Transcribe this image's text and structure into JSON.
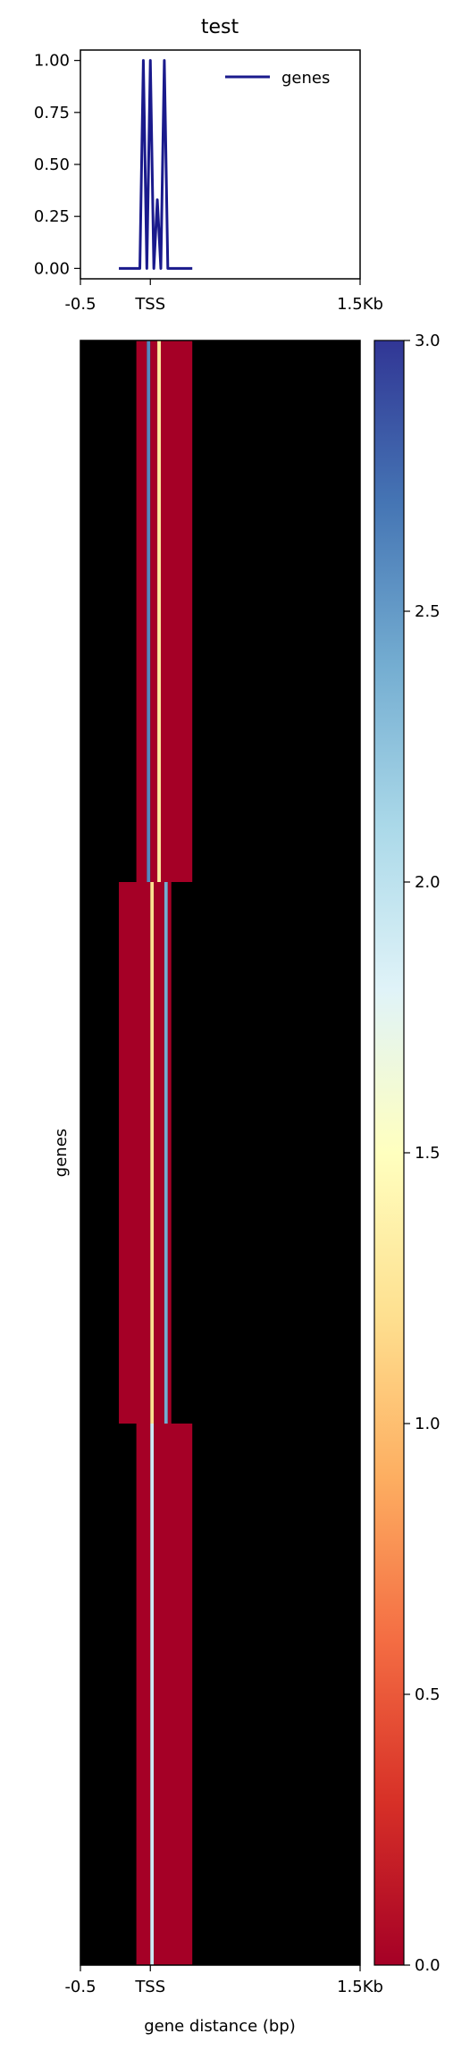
{
  "chart_data": [
    {
      "type": "line",
      "title": "test",
      "xlabel": "",
      "ylabel": "",
      "xlim": [
        -500,
        1500
      ],
      "ylim": [
        -0.05,
        1.05
      ],
      "x_ticks": [
        {
          "value": -500,
          "label": "-0.5"
        },
        {
          "value": 0,
          "label": "TSS"
        },
        {
          "value": 1500,
          "label": "1.5Kb"
        }
      ],
      "y_ticks": [
        {
          "value": 0.0,
          "label": "0.00"
        },
        {
          "value": 0.25,
          "label": "0.25"
        },
        {
          "value": 0.5,
          "label": "0.50"
        },
        {
          "value": 0.75,
          "label": "0.75"
        },
        {
          "value": 1.0,
          "label": "1.00"
        }
      ],
      "legend_position": "top-right",
      "series": [
        {
          "name": "genes",
          "color": "#1a1a8c",
          "x": [
            -225,
            -75,
            -50,
            -25,
            0,
            25,
            50,
            75,
            100,
            125,
            150,
            175,
            200,
            300
          ],
          "y": [
            0,
            0,
            1,
            0,
            1,
            0,
            0.33,
            0,
            1,
            0,
            0,
            0,
            0,
            0
          ]
        }
      ]
    },
    {
      "type": "heatmap",
      "xlabel": "gene distance (bp)",
      "ylabel": "genes",
      "xlim": [
        -500,
        1500
      ],
      "x_ticks": [
        {
          "value": -500,
          "label": "-0.5"
        },
        {
          "value": 0,
          "label": "TSS"
        },
        {
          "value": 1500,
          "label": "1.5Kb"
        }
      ],
      "colorbar": {
        "range": [
          0,
          3
        ],
        "ticks": [
          {
            "value": 0.0,
            "label": "0.0"
          },
          {
            "value": 0.5,
            "label": "0.5"
          },
          {
            "value": 1.0,
            "label": "1.0"
          },
          {
            "value": 1.5,
            "label": "1.5"
          },
          {
            "value": 2.0,
            "label": "2.0"
          },
          {
            "value": 2.5,
            "label": "2.5"
          },
          {
            "value": 3.0,
            "label": "3.0"
          }
        ],
        "colormap": [
          "#a50026",
          "#d73027",
          "#f46d43",
          "#fdae61",
          "#fee090",
          "#ffffbf",
          "#e0f3f8",
          "#abd9e9",
          "#74add1",
          "#4575b4",
          "#313695"
        ]
      },
      "missing_color": "#000000",
      "rows": [
        {
          "segments": [
            {
              "x0": -100,
              "x1": -25,
              "value": 0.0
            },
            {
              "x0": -25,
              "x1": 0,
              "value": 2.6
            },
            {
              "x0": 0,
              "x1": 50,
              "value": 0.0
            },
            {
              "x0": 50,
              "x1": 75,
              "value": 1.3
            },
            {
              "x0": 75,
              "x1": 300,
              "value": 0.0
            }
          ]
        },
        {
          "segments": [
            {
              "x0": -225,
              "x1": 0,
              "value": 0.0
            },
            {
              "x0": 0,
              "x1": 25,
              "value": 1.2
            },
            {
              "x0": 25,
              "x1": 100,
              "value": 0.0
            },
            {
              "x0": 100,
              "x1": 125,
              "value": 2.4
            },
            {
              "x0": 125,
              "x1": 150,
              "value": 0.0
            }
          ]
        },
        {
          "segments": [
            {
              "x0": -100,
              "x1": 0,
              "value": 0.0
            },
            {
              "x0": 0,
              "x1": 25,
              "value": 1.9
            },
            {
              "x0": 25,
              "x1": 300,
              "value": 0.0
            }
          ]
        }
      ]
    }
  ]
}
